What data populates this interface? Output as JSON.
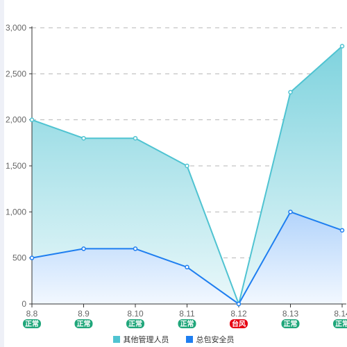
{
  "chart_data": {
    "type": "area",
    "categories": [
      "8.8",
      "8.9",
      "8.10",
      "8.11",
      "8.12",
      "8.13",
      "8.14"
    ],
    "status_labels": [
      "正常",
      "正常",
      "正常",
      "正常",
      "台风",
      "正常",
      "正常"
    ],
    "status_colors": [
      "#1fa67a",
      "#1fa67a",
      "#1fa67a",
      "#1fa67a",
      "#e60012",
      "#1fa67a",
      "#1fa67a"
    ],
    "series": [
      {
        "name": "其他管理人员",
        "values": [
          2000,
          1800,
          1800,
          1500,
          0,
          2300,
          2800
        ],
        "color": "#4fc3d1"
      },
      {
        "name": "总包安全员",
        "values": [
          500,
          600,
          600,
          400,
          0,
          1000,
          800
        ],
        "color": "#1e7ef0"
      }
    ],
    "ylim": [
      0,
      3000
    ],
    "yticks": [
      "0",
      "500",
      "1,000",
      "1,500",
      "2,000",
      "2,500",
      "3,000"
    ],
    "grid": true,
    "legend_position": "bottom"
  }
}
